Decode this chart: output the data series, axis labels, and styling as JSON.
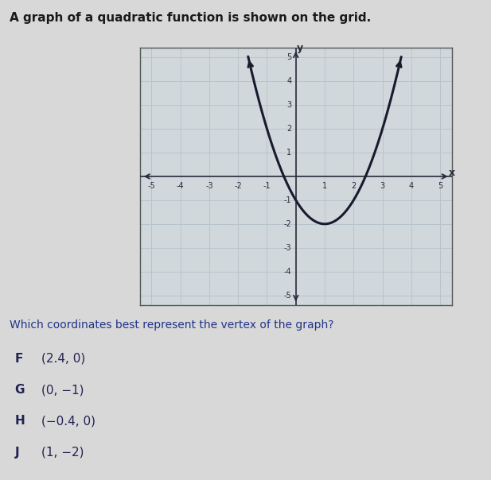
{
  "title": "A graph of a quadratic function is shown on the grid.",
  "question": "Which coordinates best represent the vertex of the graph?",
  "options": [
    {
      "label": "F",
      "text": "(2.4, 0)"
    },
    {
      "label": "G",
      "text": "(0, −1)"
    },
    {
      "label": "H",
      "text": "(−0.4, 0)"
    },
    {
      "label": "J",
      "text": "(1, −2)"
    }
  ],
  "vertex": [
    1,
    -2
  ],
  "parabola_a": 1,
  "xmin": -5,
  "xmax": 5,
  "ymin": -5,
  "ymax": 5,
  "curve_color": "#1a1a2e",
  "grid_color": "#b8c4cc",
  "bg_color": "#d8d8d8",
  "plot_bg": "#d0d8dc",
  "axis_color": "#2a2a3a",
  "title_color": "#1a1a1a",
  "text_color": "#222255",
  "question_color": "#223388",
  "title_fontsize": 11,
  "label_fontsize": 10,
  "option_fontsize": 11,
  "tick_fontsize": 7
}
